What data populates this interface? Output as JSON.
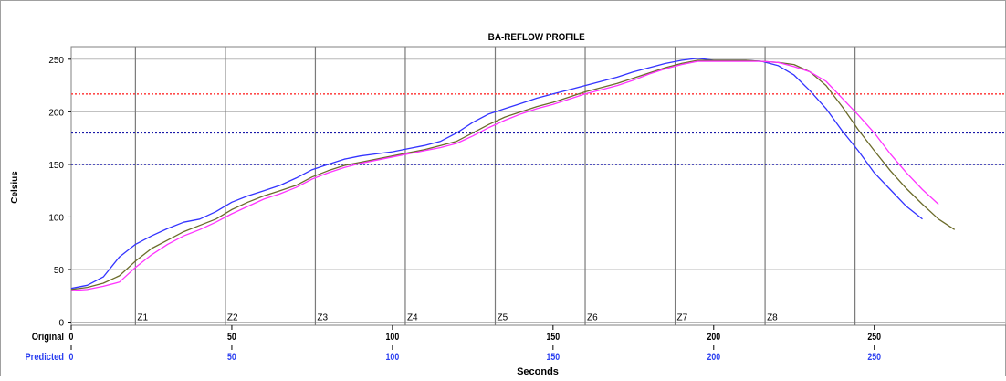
{
  "chart_data": {
    "type": "line",
    "title": "BA-REFLOW PROFILE",
    "xlabel": "Seconds",
    "ylabel": "Celsius",
    "xlim": [
      0,
      291
    ],
    "ylim": [
      -3,
      262
    ],
    "grid": true,
    "yticks": [
      0,
      50,
      100,
      150,
      200,
      250
    ],
    "xticks": [
      0,
      50,
      100,
      150,
      200,
      250
    ],
    "x_axis_rows": [
      {
        "label": "Original",
        "color": "#000000",
        "ticks": [
          "0",
          "50",
          "100",
          "150",
          "200",
          "250"
        ]
      },
      {
        "label": "Predicted",
        "color": "#2b3ff0",
        "ticks": [
          "0",
          "50",
          "100",
          "150",
          "200",
          "250"
        ]
      }
    ],
    "zones": [
      {
        "label": "Z1",
        "x": 20
      },
      {
        "label": "Z2",
        "x": 48
      },
      {
        "label": "Z3",
        "x": 76
      },
      {
        "label": "Z4",
        "x": 104
      },
      {
        "label": "Z5",
        "x": 132
      },
      {
        "label": "Z6",
        "x": 160
      },
      {
        "label": "Z7",
        "x": 188
      },
      {
        "label": "Z8",
        "x": 216
      },
      {
        "label": "",
        "x": 244
      }
    ],
    "reference_lines": [
      {
        "y": 217,
        "color": "#ff4b4b",
        "dash": "dotted"
      },
      {
        "y": 180,
        "color": "#1a1aa8",
        "dash": "dotted"
      },
      {
        "y": 150,
        "color": "#1a1aa8",
        "dash": "dotted"
      }
    ],
    "series": [
      {
        "color": "#3333ff",
        "x": [
          0,
          5,
          10,
          15,
          20,
          25,
          30,
          35,
          40,
          45,
          50,
          55,
          60,
          65,
          70,
          75,
          80,
          85,
          90,
          95,
          100,
          105,
          110,
          115,
          120,
          125,
          130,
          135,
          140,
          145,
          150,
          155,
          160,
          165,
          170,
          175,
          180,
          185,
          190,
          195,
          200,
          205,
          210,
          215,
          220,
          225,
          230,
          235,
          240,
          245,
          250,
          255,
          260,
          265
        ],
        "y": [
          32,
          35,
          43,
          62,
          74,
          82,
          89,
          95,
          98,
          105,
          114,
          120,
          125,
          130,
          137,
          145,
          150,
          155,
          158,
          160,
          162,
          165,
          168,
          172,
          180,
          190,
          198,
          203,
          208,
          213,
          217,
          221,
          225,
          229,
          233,
          238,
          242,
          246,
          249,
          251,
          249,
          249,
          249,
          248,
          244,
          235,
          220,
          203,
          182,
          163,
          142,
          126,
          110,
          98
        ]
      },
      {
        "color": "#6b6b2a",
        "x": [
          0,
          5,
          10,
          15,
          20,
          25,
          30,
          35,
          40,
          45,
          50,
          55,
          60,
          65,
          70,
          75,
          80,
          85,
          90,
          95,
          100,
          105,
          110,
          115,
          120,
          125,
          130,
          135,
          140,
          145,
          150,
          155,
          160,
          165,
          170,
          175,
          180,
          185,
          190,
          195,
          200,
          205,
          210,
          215,
          220,
          225,
          230,
          235,
          240,
          245,
          250,
          255,
          260,
          265,
          270,
          275
        ],
        "y": [
          31,
          33,
          37,
          44,
          58,
          70,
          78,
          86,
          92,
          98,
          107,
          114,
          120,
          125,
          130,
          138,
          144,
          149,
          152,
          155,
          158,
          161,
          164,
          168,
          172,
          180,
          188,
          195,
          200,
          205,
          209,
          214,
          219,
          223,
          227,
          232,
          237,
          242,
          246,
          249,
          249,
          249,
          249,
          248,
          247,
          245,
          238,
          225,
          205,
          183,
          163,
          144,
          127,
          112,
          98,
          88
        ]
      },
      {
        "color": "#ff33ff",
        "x": [
          0,
          5,
          10,
          15,
          20,
          25,
          30,
          35,
          40,
          45,
          50,
          55,
          60,
          65,
          70,
          75,
          80,
          85,
          90,
          95,
          100,
          105,
          110,
          115,
          120,
          125,
          130,
          135,
          140,
          145,
          150,
          155,
          160,
          165,
          170,
          175,
          180,
          185,
          190,
          195,
          200,
          205,
          210,
          215,
          220,
          225,
          230,
          235,
          240,
          245,
          250,
          255,
          260,
          265,
          270
        ],
        "y": [
          30,
          31,
          34,
          38,
          52,
          64,
          74,
          82,
          88,
          95,
          103,
          110,
          117,
          122,
          128,
          136,
          142,
          147,
          151,
          154,
          157,
          160,
          163,
          166,
          170,
          177,
          185,
          192,
          198,
          203,
          207,
          212,
          217,
          221,
          225,
          230,
          236,
          241,
          245,
          248,
          248,
          248,
          248,
          248,
          247,
          243,
          238,
          229,
          213,
          197,
          180,
          160,
          142,
          126,
          112
        ]
      }
    ]
  }
}
